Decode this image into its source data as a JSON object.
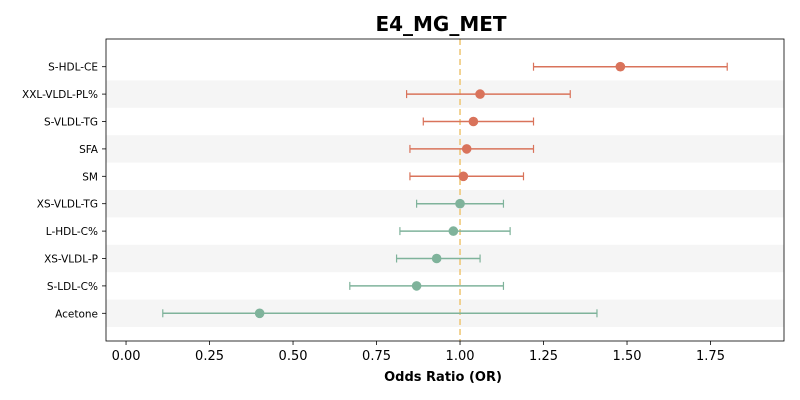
{
  "chart_data": {
    "type": "forest",
    "title": "E4_MG_MET",
    "xlabel": "Odds Ratio (OR)",
    "ylabel": "",
    "xlim": [
      -0.06,
      1.97
    ],
    "x_ticks": [
      0.0,
      0.25,
      0.5,
      0.75,
      1.0,
      1.25,
      1.5,
      1.75
    ],
    "x_tick_labels": [
      "0.00",
      "0.25",
      "0.50",
      "0.75",
      "1.00",
      "1.25",
      "1.50",
      "1.75"
    ],
    "reference_line": 1.0,
    "alternating_row_shading": true,
    "colors": {
      "positive": "#d9735b",
      "negative": "#7fb39b",
      "reference": "#efc87a",
      "row_shade": "#f5f5f5"
    },
    "rows": [
      {
        "label": "S-HDL-CE",
        "or": 1.48,
        "lower": 1.22,
        "upper": 1.8,
        "direction": "positive"
      },
      {
        "label": "XXL-VLDL-PL%",
        "or": 1.06,
        "lower": 0.84,
        "upper": 1.33,
        "direction": "positive"
      },
      {
        "label": "S-VLDL-TG",
        "or": 1.04,
        "lower": 0.89,
        "upper": 1.22,
        "direction": "positive"
      },
      {
        "label": "SFA",
        "or": 1.02,
        "lower": 0.85,
        "upper": 1.22,
        "direction": "positive"
      },
      {
        "label": "SM",
        "or": 1.01,
        "lower": 0.85,
        "upper": 1.19,
        "direction": "positive"
      },
      {
        "label": "XS-VLDL-TG",
        "or": 1.0,
        "lower": 0.87,
        "upper": 1.13,
        "direction": "negative"
      },
      {
        "label": "L-HDL-C%",
        "or": 0.98,
        "lower": 0.82,
        "upper": 1.15,
        "direction": "negative"
      },
      {
        "label": "XS-VLDL-P",
        "or": 0.93,
        "lower": 0.81,
        "upper": 1.06,
        "direction": "negative"
      },
      {
        "label": "S-LDL-C%",
        "or": 0.87,
        "lower": 0.67,
        "upper": 1.13,
        "direction": "negative"
      },
      {
        "label": "Acetone",
        "or": 0.4,
        "lower": 0.11,
        "upper": 1.41,
        "direction": "negative"
      }
    ]
  }
}
